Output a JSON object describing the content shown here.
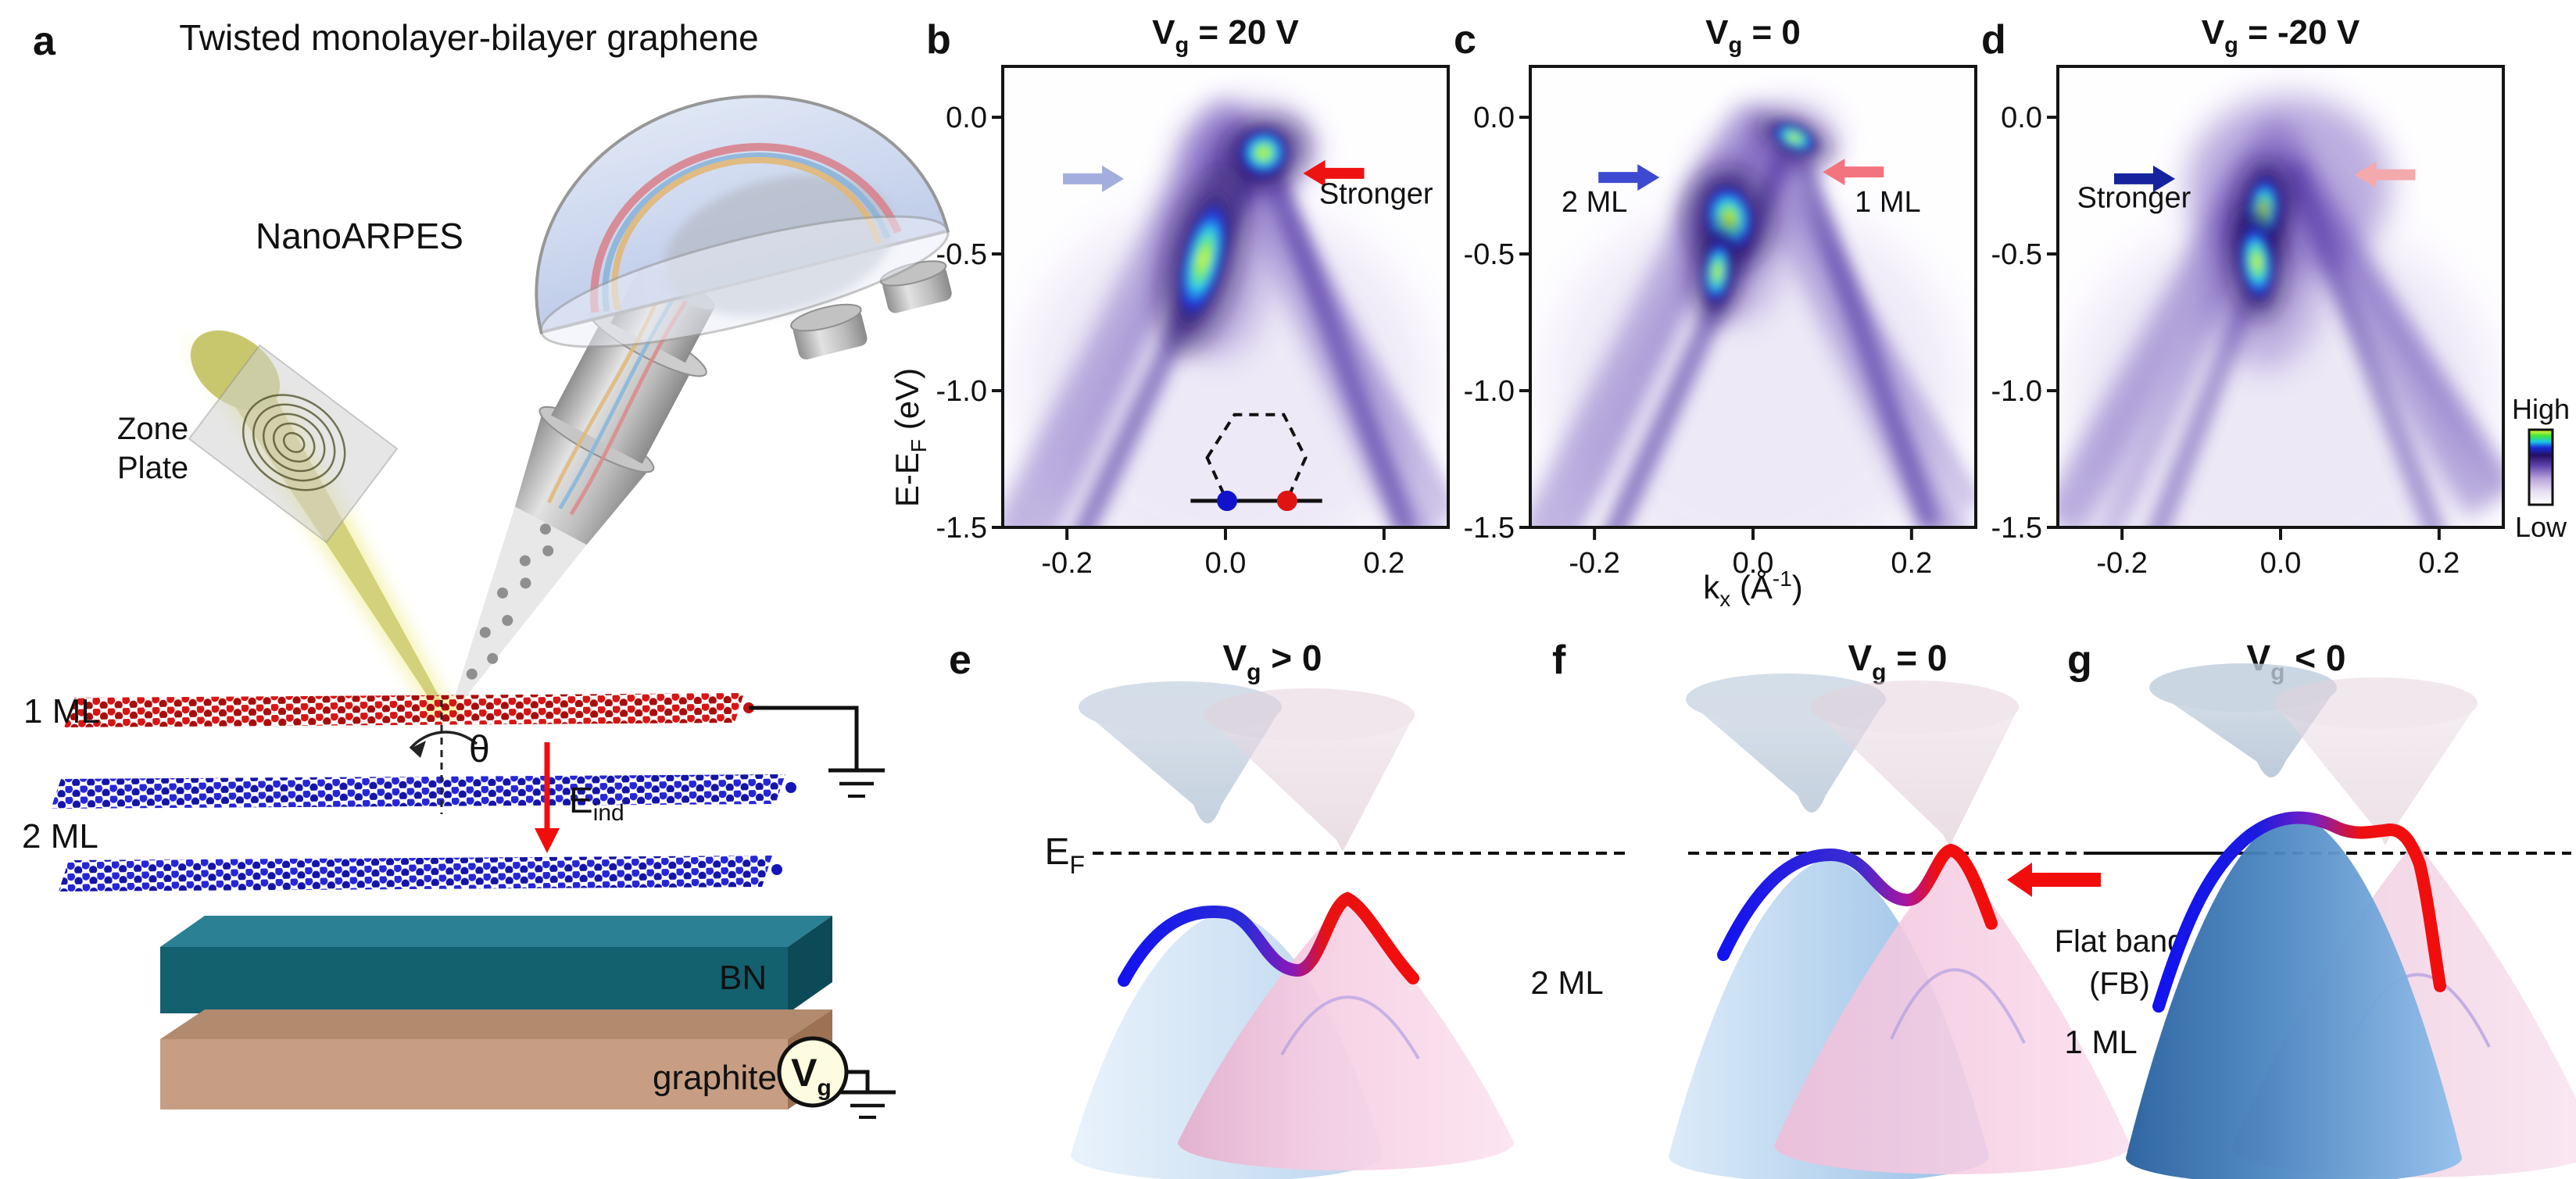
{
  "panel_a": {
    "label": "a",
    "title": "Twisted monolayer-bilayer graphene",
    "instrument": "NanoARPES",
    "zone_plate_line1": "Zone",
    "zone_plate_line2": "Plate",
    "monolayer_label": "1 ML",
    "bilayer_label": "2 ML",
    "twist_angle": "θ",
    "efield": {
      "main": "E",
      "sub": "ind"
    },
    "bn_label": "BN",
    "graphite_label": "graphite",
    "gate": {
      "main": "V",
      "sub": "g"
    },
    "colors": {
      "monolayer": "#e01010",
      "bilayer": "#1a1ad8",
      "bn_front": "#13606f",
      "graphite_front": "#c79e83",
      "beam": "#d3d17c",
      "efield_arrow": "#f20d0d"
    }
  },
  "chart_data": [
    {
      "type": "heatmap",
      "panel_label": "b",
      "title_parts": {
        "main": "V",
        "sub": "g",
        "rest": " = 20 V"
      },
      "title_color": "#b50d0d",
      "xlim": [
        -0.281,
        0.281
      ],
      "ylim": [
        -1.5,
        0.186
      ],
      "xticks": {
        "values": [
          -0.2,
          0.0,
          0.2
        ],
        "labels": [
          "-0.2",
          "0.0",
          "0.2"
        ]
      },
      "yticks": {
        "values": [
          0.0,
          -0.5,
          -1.0,
          -1.5
        ],
        "labels": [
          "0.0",
          "-0.5",
          "-1.0",
          "-1.5"
        ]
      },
      "ylabel_parts": {
        "main": "E-E",
        "sub": "F",
        "rest": " (eV)"
      },
      "colormap_low_to_high": [
        "#ffffff",
        "#cbbce4",
        "#7a5fc0",
        "#2a1670",
        "#1b2bd8",
        "#19c8e8",
        "#42e83a",
        "#f8f53a"
      ],
      "bands": [
        {
          "pts": [
            [
              -0.272,
              -1.55
            ],
            [
              0.0,
              -0.02
            ],
            [
              0.252,
              -1.55
            ]
          ],
          "width": 58,
          "opacity": 0.42,
          "color": "#6b4fb8",
          "blur": 13
        },
        {
          "pts": [
            [
              -0.23,
              -1.55
            ],
            [
              0.012,
              -0.06
            ],
            [
              0.285,
              -1.45
            ]
          ],
          "width": 30,
          "opacity": 0.3,
          "color": "#6b4fb8",
          "blur": 10
        },
        {
          "pts": [
            [
              -0.185,
              -1.55
            ],
            [
              0.048,
              -0.11
            ],
            [
              0.23,
              -1.52
            ]
          ],
          "width": 26,
          "opacity": 0.6,
          "color": "#4a2fa0",
          "blur": 7
        }
      ],
      "clouds": [
        {
          "k": 0.03,
          "E": -0.12,
          "rx": 85,
          "ry": 60,
          "opacity": 0.42
        },
        {
          "k": -0.01,
          "E": -0.45,
          "rx": 72,
          "ry": 150,
          "opacity": 0.38
        },
        {
          "k": 0.0,
          "E": -1.0,
          "rx": 260,
          "ry": 240,
          "opacity": 0.12
        }
      ],
      "hotspots": [
        {
          "k": 0.048,
          "E": -0.13,
          "rx": 40,
          "ry": 38,
          "rot": -20
        },
        {
          "k": -0.028,
          "E": -0.52,
          "rx": 34,
          "ry": 100,
          "rot": 14
        }
      ],
      "arrows": [
        {
          "dir": "right",
          "color": "#a3aede",
          "k": -0.205,
          "E": -0.225
        },
        {
          "dir": "left",
          "color": "#ee1212",
          "k": 0.175,
          "E": -0.205
        }
      ],
      "annotations": [
        {
          "text": "Stronger",
          "k": 0.19,
          "E": -0.315,
          "color": "#000000"
        }
      ],
      "inset": {
        "shape": "dashed-hexagon-brillouin-zone",
        "center": {
          "k": 0.039,
          "E": -1.245
        },
        "cut_line": {
          "k1": -0.044,
          "k2": 0.122,
          "E": -1.403
        },
        "dots": [
          {
            "k": 0.002,
            "E": -1.403,
            "color": "#1212cc"
          },
          {
            "k": 0.0777,
            "E": -1.403,
            "color": "#e01212"
          }
        ]
      }
    },
    {
      "type": "heatmap",
      "panel_label": "c",
      "title_parts": {
        "main": "V",
        "sub": "g",
        "rest": " = 0"
      },
      "title_color": "#000000",
      "xlim": [
        -0.281,
        0.281
      ],
      "ylim": [
        -1.5,
        0.186
      ],
      "xticks": {
        "values": [
          -0.2,
          0.0,
          0.2
        ],
        "labels": [
          "-0.2",
          "0.0",
          "0.2"
        ]
      },
      "yticks": {
        "values": [
          0.0,
          -0.5,
          -1.0,
          -1.5
        ],
        "labels": [
          "0.0",
          "-0.5",
          "-1.0",
          "-1.5"
        ]
      },
      "xlabel_parts": {
        "main": "k",
        "sub": "x",
        "rest": " (Å",
        "sup": "-1",
        "rest2": ")"
      },
      "colormap_low_to_high": [
        "#ffffff",
        "#cbbce4",
        "#7a5fc0",
        "#2a1670",
        "#1b2bd8",
        "#19c8e8",
        "#42e83a",
        "#f8f53a"
      ],
      "bands": [
        {
          "pts": [
            [
              -0.272,
              -1.55
            ],
            [
              -0.005,
              -0.03
            ],
            [
              0.25,
              -1.55
            ]
          ],
          "width": 56,
          "opacity": 0.42,
          "color": "#6b4fb8",
          "blur": 13
        },
        {
          "pts": [
            [
              -0.235,
              -1.55
            ],
            [
              0.01,
              -0.07
            ],
            [
              0.28,
              -1.42
            ]
          ],
          "width": 28,
          "opacity": 0.3,
          "color": "#6b4fb8",
          "blur": 10
        },
        {
          "pts": [
            [
              -0.18,
              -1.55
            ],
            [
              0.05,
              -0.07
            ],
            [
              0.225,
              -1.5
            ]
          ],
          "width": 26,
          "opacity": 0.6,
          "color": "#4a2fa0",
          "blur": 7
        }
      ],
      "clouds": [
        {
          "k": 0.045,
          "E": -0.08,
          "rx": 60,
          "ry": 45,
          "opacity": 0.42
        },
        {
          "k": -0.02,
          "E": -0.4,
          "rx": 65,
          "ry": 120,
          "opacity": 0.4
        },
        {
          "k": 0.0,
          "E": -1.0,
          "rx": 260,
          "ry": 240,
          "opacity": 0.12
        }
      ],
      "hotspots": [
        {
          "k": 0.052,
          "E": -0.075,
          "rx": 36,
          "ry": 20,
          "rot": 25
        },
        {
          "k": -0.03,
          "E": -0.37,
          "rx": 40,
          "ry": 55,
          "rot": -10
        },
        {
          "k": -0.045,
          "E": -0.565,
          "rx": 22,
          "ry": 52,
          "rot": 6
        }
      ],
      "arrows": [
        {
          "dir": "right",
          "color": "#3d49d0",
          "k": -0.195,
          "E": -0.22
        },
        {
          "dir": "left",
          "color": "#f3747e",
          "k": 0.165,
          "E": -0.2
        }
      ],
      "annotations": [
        {
          "text": "2 ML",
          "k": -0.2,
          "E": -0.345,
          "color": "#1a1adf"
        },
        {
          "text": "1 ML",
          "k": 0.17,
          "E": -0.345,
          "color": "#ee1212"
        }
      ],
      "inset": null
    },
    {
      "type": "heatmap",
      "panel_label": "d",
      "title_parts": {
        "main": "V",
        "sub": "g",
        "rest": " = -20 V"
      },
      "title_color": "#1a1ab8",
      "xlim": [
        -0.281,
        0.281
      ],
      "ylim": [
        -1.5,
        0.186
      ],
      "xticks": {
        "values": [
          -0.2,
          0.0,
          0.2
        ],
        "labels": [
          "-0.2",
          "0.0",
          "0.2"
        ]
      },
      "yticks": {
        "values": [
          0.0,
          -0.5,
          -1.0,
          -1.5
        ],
        "labels": [
          "0.0",
          "-0.5",
          "-1.0",
          "-1.5"
        ]
      },
      "colormap_low_to_high": [
        "#ffffff",
        "#cbbce4",
        "#7a5fc0",
        "#2a1670",
        "#1b2bd8",
        "#19c8e8",
        "#42e83a",
        "#f8f53a"
      ],
      "bands": [
        {
          "pts": [
            [
              -0.278,
              -1.5
            ],
            [
              -0.005,
              -0.1
            ],
            [
              0.262,
              -1.42
            ]
          ],
          "width": 62,
          "opacity": 0.45,
          "color": "#6b4fb8",
          "blur": 15
        },
        {
          "pts": [
            [
              -0.22,
              -1.55
            ],
            [
              0.005,
              -0.16
            ],
            [
              0.285,
              -1.35
            ]
          ],
          "width": 32,
          "opacity": 0.3,
          "color": "#6b4fb8",
          "blur": 12
        },
        {
          "pts": [
            [
              -0.16,
              -1.55
            ],
            [
              0.02,
              -0.2
            ],
            [
              0.2,
              -1.55
            ]
          ],
          "width": 26,
          "opacity": 0.45,
          "color": "#4a2fa0",
          "blur": 9
        }
      ],
      "clouds": [
        {
          "k": 0.01,
          "E": -0.25,
          "rx": 130,
          "ry": 115,
          "opacity": 0.5
        },
        {
          "k": -0.02,
          "E": -0.52,
          "rx": 80,
          "ry": 140,
          "opacity": 0.4
        },
        {
          "k": 0.0,
          "E": -1.05,
          "rx": 270,
          "ry": 240,
          "opacity": 0.13
        }
      ],
      "hotspots": [
        {
          "k": -0.022,
          "E": -0.34,
          "rx": 27,
          "ry": 55,
          "rot": 6
        },
        {
          "k": -0.03,
          "E": -0.53,
          "rx": 27,
          "ry": 62,
          "rot": -6
        }
      ],
      "arrows": [
        {
          "dir": "right",
          "color": "#16229e",
          "k": -0.21,
          "E": -0.225
        },
        {
          "dir": "left",
          "color": "#f4a9ad",
          "k": 0.17,
          "E": -0.21
        }
      ],
      "annotations": [
        {
          "text": "Stronger",
          "k": -0.185,
          "E": -0.33,
          "color": "#000000"
        }
      ],
      "inset": null
    }
  ],
  "colorbar": {
    "high": "High",
    "low": "Low"
  },
  "schematics": [
    {
      "label": "e",
      "title": {
        "main": "V",
        "sub": "g",
        "rest": " > 0"
      },
      "title_color": "#b50d0d",
      "fermi_label": {
        "main": "E",
        "sub": "F"
      }
    },
    {
      "label": "f",
      "title": {
        "main": "V",
        "sub": "g",
        "rest": " = 0"
      },
      "title_color": "#000000",
      "bilayer_label": "2 ML",
      "flatband_line1": "Flat band",
      "flatband_line2": "(FB)",
      "monolayer_label": "1 ML"
    },
    {
      "label": "g",
      "title": {
        "main": "V",
        "sub": "g",
        "rest": " < 0"
      },
      "title_color": "#15159e"
    }
  ]
}
